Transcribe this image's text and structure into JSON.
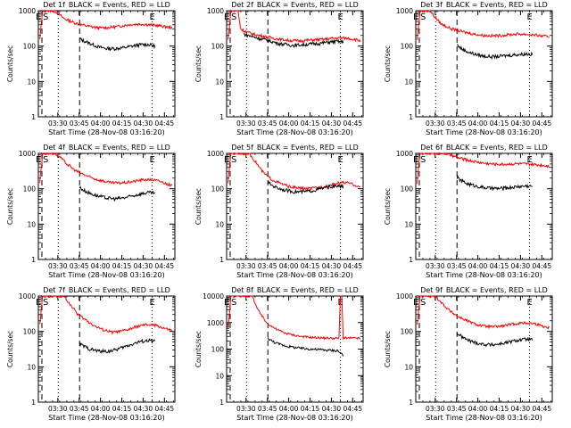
{
  "page": {
    "title_suffix": "BLACK = Events, RED = LLD",
    "x_axis_title": "Start Time (28-Nov-08 03:16:20)",
    "y_axis_title": "Counts/sec",
    "x_tick_labels": [
      "03:30",
      "03:45",
      "04:00",
      "04:15",
      "04:30",
      "04:45"
    ],
    "marker_labels": [
      "E",
      "S",
      "E"
    ],
    "series_colors": {
      "events": "#000000",
      "lld": "#ff0000"
    }
  },
  "chart_data": [
    {
      "type": "line",
      "detector": "Det 1f",
      "x_units": "minutes after 03:16:20",
      "xlim": [
        0,
        96
      ],
      "ylim": [
        1,
        1000
      ],
      "y_scale": "log",
      "y_ticks": [
        1,
        10,
        100,
        1000
      ],
      "y_tick_labels": [
        "1",
        "10",
        "100",
        "1000"
      ],
      "dashed_lines": [
        2.5,
        29
      ],
      "dotted_lines": [
        14,
        80
      ],
      "red_points": [
        [
          1,
          150
        ],
        [
          3,
          1000
        ],
        [
          10,
          1000
        ],
        [
          13,
          900
        ],
        [
          18,
          600
        ],
        [
          24,
          480
        ],
        [
          30,
          400
        ],
        [
          36,
          360
        ],
        [
          42,
          330
        ],
        [
          48,
          330
        ],
        [
          54,
          350
        ],
        [
          60,
          380
        ],
        [
          66,
          410
        ],
        [
          72,
          420
        ],
        [
          78,
          400
        ],
        [
          84,
          380
        ],
        [
          90,
          350
        ],
        [
          94,
          330
        ]
      ],
      "black_points": [
        [
          29,
          160
        ],
        [
          32,
          140
        ],
        [
          36,
          120
        ],
        [
          42,
          95
        ],
        [
          48,
          85
        ],
        [
          54,
          85
        ],
        [
          60,
          90
        ],
        [
          66,
          100
        ],
        [
          72,
          110
        ],
        [
          78,
          110
        ],
        [
          82,
          100
        ]
      ]
    },
    {
      "type": "line",
      "detector": "Det 2f",
      "x_units": "minutes after 03:16:20",
      "xlim": [
        0,
        96
      ],
      "ylim": [
        1,
        1000
      ],
      "y_scale": "log",
      "y_ticks": [
        1,
        10,
        100,
        1000
      ],
      "y_tick_labels": [
        "1",
        "10",
        "100",
        "1000"
      ],
      "dashed_lines": [
        2.5,
        29
      ],
      "dotted_lines": [
        14,
        80
      ],
      "red_points": [
        [
          1,
          150
        ],
        [
          3,
          1000
        ],
        [
          8,
          1000
        ],
        [
          10,
          300
        ],
        [
          14,
          250
        ],
        [
          20,
          210
        ],
        [
          26,
          190
        ],
        [
          32,
          170
        ],
        [
          38,
          155
        ],
        [
          44,
          145
        ],
        [
          50,
          140
        ],
        [
          56,
          145
        ],
        [
          62,
          150
        ],
        [
          68,
          155
        ],
        [
          74,
          165
        ],
        [
          80,
          170
        ],
        [
          86,
          165
        ],
        [
          92,
          150
        ],
        [
          94,
          140
        ]
      ],
      "black_points": [
        [
          12,
          220
        ],
        [
          18,
          185
        ],
        [
          24,
          160
        ],
        [
          30,
          140
        ],
        [
          36,
          120
        ],
        [
          42,
          110
        ],
        [
          48,
          105
        ],
        [
          54,
          110
        ],
        [
          60,
          115
        ],
        [
          66,
          120
        ],
        [
          72,
          130
        ],
        [
          78,
          135
        ],
        [
          82,
          130
        ]
      ]
    },
    {
      "type": "line",
      "detector": "Det 3f",
      "x_units": "minutes after 03:16:20",
      "xlim": [
        0,
        96
      ],
      "ylim": [
        1,
        1000
      ],
      "y_scale": "log",
      "y_ticks": [
        1,
        10,
        100,
        1000
      ],
      "y_tick_labels": [
        "1",
        "10",
        "100",
        "1000"
      ],
      "dashed_lines": [
        2.5,
        29
      ],
      "dotted_lines": [
        14,
        80
      ],
      "red_points": [
        [
          1,
          150
        ],
        [
          3,
          1000
        ],
        [
          10,
          1000
        ],
        [
          13,
          700
        ],
        [
          18,
          420
        ],
        [
          24,
          320
        ],
        [
          30,
          270
        ],
        [
          36,
          240
        ],
        [
          42,
          215
        ],
        [
          48,
          200
        ],
        [
          54,
          195
        ],
        [
          60,
          200
        ],
        [
          66,
          210
        ],
        [
          72,
          220
        ],
        [
          78,
          215
        ],
        [
          84,
          205
        ],
        [
          90,
          190
        ],
        [
          94,
          180
        ]
      ],
      "black_points": [
        [
          29,
          110
        ],
        [
          32,
          85
        ],
        [
          36,
          70
        ],
        [
          42,
          58
        ],
        [
          48,
          52
        ],
        [
          54,
          50
        ],
        [
          60,
          52
        ],
        [
          66,
          55
        ],
        [
          72,
          58
        ],
        [
          78,
          60
        ],
        [
          82,
          58
        ]
      ]
    },
    {
      "type": "line",
      "detector": "Det 4f",
      "x_units": "minutes after 03:16:20",
      "xlim": [
        0,
        96
      ],
      "ylim": [
        1,
        1000
      ],
      "y_scale": "log",
      "y_ticks": [
        1,
        10,
        100,
        1000
      ],
      "y_tick_labels": [
        "1",
        "10",
        "100",
        "1000"
      ],
      "dashed_lines": [
        2.5,
        29
      ],
      "dotted_lines": [
        14,
        80
      ],
      "red_points": [
        [
          1,
          150
        ],
        [
          3,
          1000
        ],
        [
          12,
          1000
        ],
        [
          15,
          800
        ],
        [
          20,
          500
        ],
        [
          26,
          330
        ],
        [
          32,
          250
        ],
        [
          38,
          200
        ],
        [
          44,
          170
        ],
        [
          50,
          150
        ],
        [
          56,
          145
        ],
        [
          62,
          150
        ],
        [
          68,
          165
        ],
        [
          74,
          180
        ],
        [
          80,
          180
        ],
        [
          86,
          160
        ],
        [
          92,
          130
        ],
        [
          94,
          120
        ]
      ],
      "black_points": [
        [
          29,
          110
        ],
        [
          32,
          90
        ],
        [
          36,
          75
        ],
        [
          42,
          62
        ],
        [
          48,
          55
        ],
        [
          54,
          52
        ],
        [
          60,
          55
        ],
        [
          66,
          62
        ],
        [
          72,
          72
        ],
        [
          78,
          78
        ],
        [
          82,
          75
        ]
      ]
    },
    {
      "type": "line",
      "detector": "Det 5f",
      "x_units": "minutes after 03:16:20",
      "xlim": [
        0,
        96
      ],
      "ylim": [
        1,
        1000
      ],
      "y_scale": "log",
      "y_ticks": [
        1,
        10,
        100,
        1000
      ],
      "y_tick_labels": [
        "1",
        "10",
        "100",
        "1000"
      ],
      "dashed_lines": [
        2.5,
        29
      ],
      "dotted_lines": [
        14,
        80
      ],
      "red_points": [
        [
          1,
          150
        ],
        [
          3,
          1000
        ],
        [
          16,
          1000
        ],
        [
          20,
          600
        ],
        [
          26,
          280
        ],
        [
          32,
          180
        ],
        [
          38,
          140
        ],
        [
          44,
          115
        ],
        [
          50,
          105
        ],
        [
          56,
          100
        ],
        [
          62,
          105
        ],
        [
          68,
          115
        ],
        [
          74,
          130
        ],
        [
          80,
          150
        ],
        [
          86,
          145
        ],
        [
          92,
          120
        ],
        [
          94,
          110
        ]
      ],
      "black_points": [
        [
          29,
          150
        ],
        [
          32,
          125
        ],
        [
          36,
          105
        ],
        [
          42,
          90
        ],
        [
          48,
          82
        ],
        [
          54,
          82
        ],
        [
          60,
          88
        ],
        [
          66,
          100
        ],
        [
          72,
          112
        ],
        [
          78,
          118
        ],
        [
          82,
          115
        ]
      ]
    },
    {
      "type": "line",
      "detector": "Det 6f",
      "x_units": "minutes after 03:16:20",
      "xlim": [
        0,
        96
      ],
      "ylim": [
        1,
        1000
      ],
      "y_scale": "log",
      "y_ticks": [
        1,
        10,
        100,
        1000
      ],
      "y_tick_labels": [
        "1",
        "10",
        "100",
        "1000"
      ],
      "dashed_lines": [
        2.5,
        29
      ],
      "dotted_lines": [
        14,
        80
      ],
      "red_points": [
        [
          1,
          150
        ],
        [
          3,
          1000
        ],
        [
          20,
          1000
        ],
        [
          24,
          900
        ],
        [
          30,
          750
        ],
        [
          36,
          650
        ],
        [
          42,
          580
        ],
        [
          48,
          530
        ],
        [
          54,
          500
        ],
        [
          60,
          490
        ],
        [
          66,
          500
        ],
        [
          72,
          510
        ],
        [
          78,
          500
        ],
        [
          84,
          480
        ],
        [
          90,
          460
        ],
        [
          94,
          440
        ]
      ],
      "black_points": [
        [
          29,
          210
        ],
        [
          32,
          170
        ],
        [
          36,
          140
        ],
        [
          42,
          120
        ],
        [
          48,
          108
        ],
        [
          54,
          102
        ],
        [
          60,
          102
        ],
        [
          66,
          108
        ],
        [
          72,
          115
        ],
        [
          78,
          120
        ],
        [
          82,
          118
        ]
      ]
    },
    {
      "type": "line",
      "detector": "Det 7f",
      "x_units": "minutes after 03:16:20",
      "xlim": [
        0,
        96
      ],
      "ylim": [
        1,
        1000
      ],
      "y_scale": "log",
      "y_ticks": [
        1,
        10,
        100,
        1000
      ],
      "y_tick_labels": [
        "1",
        "10",
        "100",
        "1000"
      ],
      "dashed_lines": [
        2.5,
        29
      ],
      "dotted_lines": [
        14,
        80
      ],
      "red_points": [
        [
          1,
          150
        ],
        [
          3,
          1000
        ],
        [
          18,
          1000
        ],
        [
          22,
          600
        ],
        [
          28,
          300
        ],
        [
          34,
          200
        ],
        [
          40,
          140
        ],
        [
          46,
          110
        ],
        [
          52,
          95
        ],
        [
          58,
          100
        ],
        [
          64,
          115
        ],
        [
          70,
          140
        ],
        [
          76,
          155
        ],
        [
          82,
          150
        ],
        [
          88,
          125
        ],
        [
          94,
          105
        ]
      ],
      "black_points": [
        [
          29,
          45
        ],
        [
          32,
          38
        ],
        [
          36,
          32
        ],
        [
          42,
          28
        ],
        [
          48,
          27
        ],
        [
          54,
          30
        ],
        [
          60,
          36
        ],
        [
          66,
          44
        ],
        [
          72,
          52
        ],
        [
          78,
          55
        ],
        [
          82,
          52
        ]
      ]
    },
    {
      "type": "line",
      "detector": "Det 8f",
      "x_units": "minutes after 03:16:20",
      "xlim": [
        0,
        96
      ],
      "ylim": [
        1,
        10000
      ],
      "y_scale": "log",
      "y_ticks": [
        1,
        10,
        100,
        1000,
        10000
      ],
      "y_tick_labels": [
        "1",
        "10",
        "100",
        "1000",
        "10000"
      ],
      "dashed_lines": [
        2.5,
        29
      ],
      "dotted_lines": [
        14,
        80
      ],
      "red_points": [
        [
          1,
          600
        ],
        [
          3,
          10000
        ],
        [
          18,
          10000
        ],
        [
          22,
          3000
        ],
        [
          28,
          1000
        ],
        [
          34,
          600
        ],
        [
          40,
          420
        ],
        [
          46,
          350
        ],
        [
          52,
          300
        ],
        [
          58,
          280
        ],
        [
          64,
          270
        ],
        [
          70,
          260
        ],
        [
          76,
          255
        ],
        [
          79,
          255
        ],
        [
          80,
          10000
        ],
        [
          81,
          10000
        ],
        [
          82,
          260
        ],
        [
          88,
          260
        ],
        [
          94,
          255
        ]
      ],
      "black_points": [
        [
          29,
          260
        ],
        [
          32,
          200
        ],
        [
          36,
          160
        ],
        [
          42,
          130
        ],
        [
          48,
          115
        ],
        [
          54,
          105
        ],
        [
          60,
          100
        ],
        [
          66,
          95
        ],
        [
          72,
          90
        ],
        [
          78,
          88
        ],
        [
          82,
          60
        ]
      ]
    },
    {
      "type": "line",
      "detector": "Det 9f",
      "x_units": "minutes after 03:16:20",
      "xlim": [
        0,
        96
      ],
      "ylim": [
        1,
        1000
      ],
      "y_scale": "log",
      "y_ticks": [
        1,
        10,
        100,
        1000
      ],
      "y_tick_labels": [
        "1",
        "10",
        "100",
        "1000"
      ],
      "dashed_lines": [
        2.5,
        29
      ],
      "dotted_lines": [
        14,
        80
      ],
      "red_points": [
        [
          1,
          150
        ],
        [
          3,
          1000
        ],
        [
          14,
          1000
        ],
        [
          18,
          650
        ],
        [
          24,
          380
        ],
        [
          30,
          260
        ],
        [
          36,
          200
        ],
        [
          42,
          160
        ],
        [
          48,
          140
        ],
        [
          54,
          135
        ],
        [
          60,
          140
        ],
        [
          66,
          155
        ],
        [
          72,
          170
        ],
        [
          78,
          175
        ],
        [
          84,
          165
        ],
        [
          90,
          140
        ],
        [
          94,
          125
        ]
      ],
      "black_points": [
        [
          29,
          90
        ],
        [
          32,
          72
        ],
        [
          36,
          58
        ],
        [
          42,
          48
        ],
        [
          48,
          43
        ],
        [
          54,
          42
        ],
        [
          60,
          45
        ],
        [
          66,
          50
        ],
        [
          72,
          57
        ],
        [
          78,
          60
        ],
        [
          82,
          58
        ]
      ]
    }
  ]
}
